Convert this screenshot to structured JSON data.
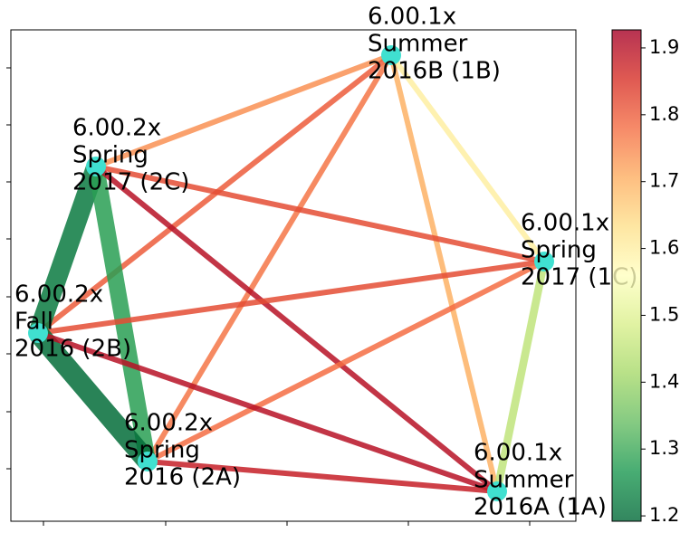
{
  "chart_data": {
    "type": "network",
    "nodes": [
      {
        "lines": [
          "6.00.1x",
          "Summer",
          "2016B (1B)"
        ]
      },
      {
        "lines": [
          "6.00.2x",
          "Spring",
          "2017 (2C)"
        ]
      },
      {
        "lines": [
          "6.00.1x",
          "Spring",
          "2017 (1C)"
        ]
      },
      {
        "lines": [
          "6.00.2x",
          "Fall",
          "2016 (2B)"
        ]
      },
      {
        "lines": [
          "6.00.2x",
          "Spring",
          "2016 (2A)"
        ]
      },
      {
        "lines": [
          "6.00.1x",
          "Summer",
          "2016A (1A)"
        ]
      }
    ],
    "edges": {
      "pairs": [
        [
          0,
          2
        ],
        [
          0,
          1
        ],
        [
          0,
          3
        ],
        [
          0,
          4
        ],
        [
          0,
          5
        ],
        [
          1,
          2
        ],
        [
          1,
          3
        ],
        [
          1,
          4
        ],
        [
          1,
          5
        ],
        [
          2,
          3
        ],
        [
          2,
          4
        ],
        [
          2,
          5
        ],
        [
          3,
          4
        ],
        [
          3,
          5
        ],
        [
          4,
          5
        ]
      ],
      "values": [
        1.6,
        1.74,
        1.8,
        1.77,
        1.7,
        1.82,
        1.22,
        1.28,
        1.9,
        1.82,
        1.78,
        1.45,
        1.2,
        1.9,
        1.88
      ]
    },
    "colormap": "RdYlGn_r",
    "colorlim": [
      1.192,
      1.927
    ],
    "colorticks": [
      1.2,
      1.3,
      1.4,
      1.5,
      1.6,
      1.7,
      1.8,
      1.9
    ]
  }
}
